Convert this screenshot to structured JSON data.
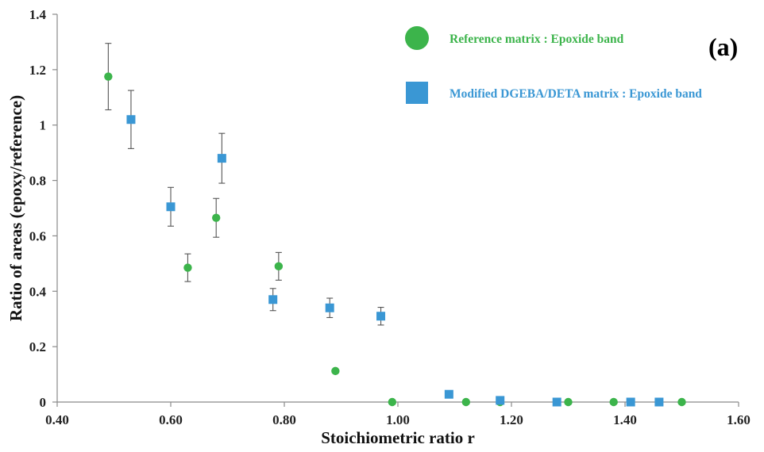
{
  "chart_data": {
    "type": "scatter",
    "xlabel": "Stoichiometric ratio r",
    "ylabel": "Ratio of areas (epoxy/reference)",
    "xlim": [
      0.4,
      1.6
    ],
    "ylim": [
      0,
      1.4
    ],
    "x_ticks": [
      "0.40",
      "0.60",
      "0.80",
      "1.00",
      "1.20",
      "1.40",
      "1.60"
    ],
    "y_ticks": [
      "0",
      "0.2",
      "0.4",
      "0.6",
      "0.8",
      "1",
      "1.2",
      "1.4"
    ],
    "x_tick_values": [
      0.4,
      0.6,
      0.8,
      1.0,
      1.2,
      1.4,
      1.6
    ],
    "y_tick_values": [
      0,
      0.2,
      0.4,
      0.6,
      0.8,
      1.0,
      1.2,
      1.4
    ],
    "grid": false,
    "legend_position": "top-right",
    "panel_label": "(a)",
    "series": [
      {
        "name": "Reference matrix : Epoxide band",
        "marker": "circle",
        "color": "#3cb44b",
        "x": [
          0.49,
          0.63,
          0.68,
          0.79,
          0.89,
          0.99,
          1.12,
          1.18,
          1.3,
          1.38,
          1.5
        ],
        "y": [
          1.175,
          0.485,
          0.665,
          0.49,
          0.112,
          0.0,
          0.0,
          0.0,
          0.0,
          0.0,
          0.0
        ],
        "error": [
          0.12,
          0.05,
          0.07,
          0.05,
          null,
          null,
          null,
          null,
          null,
          null,
          null
        ]
      },
      {
        "name": "Modified DGEBA/DETA matrix : Epoxide band",
        "marker": "square",
        "color": "#3a97d4",
        "x": [
          0.53,
          0.6,
          0.69,
          0.78,
          0.88,
          0.97,
          1.09,
          1.18,
          1.28,
          1.41,
          1.46
        ],
        "y": [
          1.02,
          0.705,
          0.88,
          0.37,
          0.34,
          0.31,
          0.028,
          0.006,
          0.0,
          0.0,
          0.0
        ],
        "error": [
          0.105,
          0.07,
          0.09,
          0.04,
          0.035,
          0.032,
          null,
          null,
          null,
          null,
          null
        ]
      }
    ]
  }
}
